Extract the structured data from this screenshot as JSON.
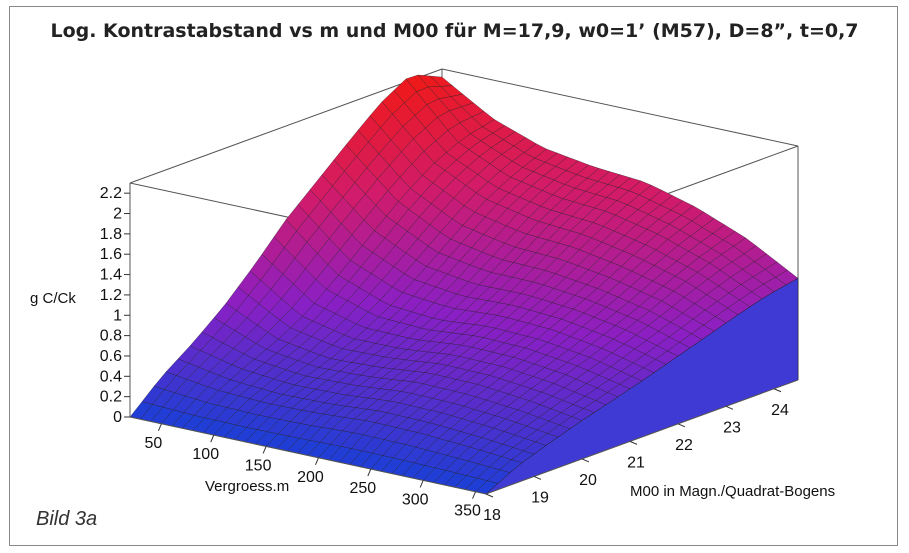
{
  "figure": {
    "caption": "Bild 3a"
  },
  "chart_data": {
    "type": "surface3d",
    "title": "Log. Kontrastabstand vs m und M00 für M=17,9, w0=1’ (M57), D=8”, t=0,7",
    "xlabel": "Vergroess.m",
    "ylabel": "M00 in Magn./Quadrat-Bogens",
    "zlabel": "g C/Ck",
    "x_ticks": [
      "50",
      "100",
      "150",
      "200",
      "250",
      "300",
      "350"
    ],
    "y_ticks": [
      "18",
      "19",
      "20",
      "21",
      "22",
      "23",
      "24"
    ],
    "z_ticks": [
      "0",
      "0.2",
      "0.4",
      "0.6",
      "0.8",
      "1",
      "1.2",
      "1.4",
      "1.6",
      "1.8",
      "2",
      "2.2"
    ],
    "xlim": [
      20,
      360
    ],
    "ylim": [
      18,
      24.5
    ],
    "zlim": [
      0,
      2.3
    ],
    "colormap": [
      "#1a3fd6",
      "#8a1fc4",
      "#d21b6a",
      "#ee1a1a"
    ],
    "surface_rows": [
      [
        0.0,
        0.28,
        0.5,
        0.75,
        1.05,
        1.38,
        1.65,
        1.92,
        2.18,
        2.36,
        2.22
      ],
      [
        0.0,
        0.22,
        0.38,
        0.52,
        0.7,
        0.95,
        1.22,
        1.48,
        1.7,
        1.85,
        1.92
      ],
      [
        0.0,
        0.2,
        0.33,
        0.44,
        0.58,
        0.76,
        0.98,
        1.22,
        1.45,
        1.62,
        1.74
      ],
      [
        0.0,
        0.21,
        0.34,
        0.46,
        0.58,
        0.72,
        0.91,
        1.12,
        1.34,
        1.52,
        1.66
      ],
      [
        0.0,
        0.24,
        0.38,
        0.51,
        0.63,
        0.76,
        0.92,
        1.1,
        1.3,
        1.48,
        1.62
      ],
      [
        0.0,
        0.23,
        0.37,
        0.5,
        0.62,
        0.74,
        0.88,
        1.03,
        1.2,
        1.36,
        1.48
      ],
      [
        0.0,
        0.2,
        0.33,
        0.45,
        0.56,
        0.67,
        0.79,
        0.92,
        1.06,
        1.18,
        1.28
      ],
      [
        0.0,
        0.16,
        0.27,
        0.37,
        0.46,
        0.55,
        0.65,
        0.75,
        0.85,
        0.94,
        1.0
      ]
    ]
  }
}
